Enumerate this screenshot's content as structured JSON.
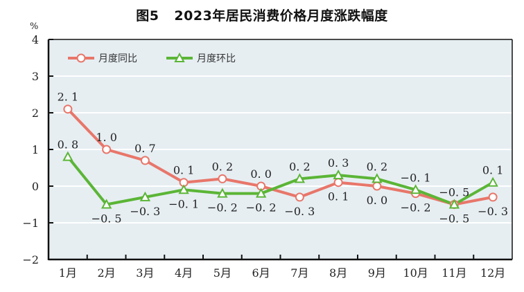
{
  "chart_data": {
    "type": "line",
    "title_prefix": "图5",
    "title": "2023年居民消费价格月度涨跌幅度",
    "ylabel": "%",
    "xlabel": "",
    "ylim": [
      -2,
      4
    ],
    "yticks": [
      "4",
      "3",
      "2",
      "1",
      "0",
      "−1",
      "−2"
    ],
    "ytick_values": [
      4,
      3,
      2,
      1,
      0,
      -1,
      -2
    ],
    "grid": true,
    "legend_position": "top-left",
    "categories": [
      "1月",
      "2月",
      "3月",
      "4月",
      "5月",
      "6月",
      "7月",
      "8月",
      "9月",
      "10月",
      "11月",
      "12月"
    ],
    "series": [
      {
        "name": "月度同比",
        "color": "#e8766a",
        "marker": "circle",
        "values": [
          2.1,
          1.0,
          0.7,
          0.1,
          0.2,
          0.0,
          -0.3,
          0.1,
          0.0,
          -0.2,
          -0.5,
          -0.3
        ],
        "labels": [
          "2. 1",
          "1. 0",
          "0. 7",
          "0. 1",
          "0. 2",
          "0. 0",
          "−0. 3",
          "0. 1",
          "0. 0",
          "−0. 2",
          "−0. 5",
          "−0. 3"
        ]
      },
      {
        "name": "月度环比",
        "color": "#5bb536",
        "marker": "triangle",
        "values": [
          0.8,
          -0.5,
          -0.3,
          -0.1,
          -0.2,
          -0.2,
          0.2,
          0.3,
          0.2,
          -0.1,
          -0.5,
          0.1
        ],
        "labels": [
          "0. 8",
          "−0. 5",
          "−0. 3",
          "−0. 1",
          "−0. 2",
          "−0. 2",
          "0. 2",
          "0. 3",
          "0. 2",
          "−0. 1",
          "−0. 5",
          "0. 1"
        ]
      }
    ],
    "colors": {
      "plot_bg": "#e6eef2",
      "grid": "#ffffff",
      "axis": "#111111"
    }
  }
}
